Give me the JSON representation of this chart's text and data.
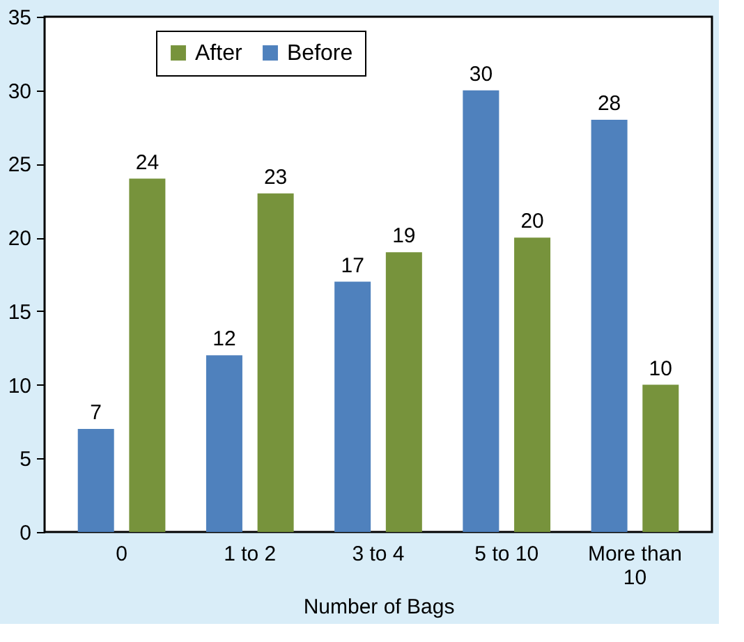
{
  "chart_data": {
    "type": "bar",
    "xlabel": "Number of Bags",
    "categories": [
      "0",
      "1 to 2",
      "3 to 4",
      "5 to 10",
      "More than 10"
    ],
    "series": [
      {
        "name": "Before",
        "color": "#4f81bd",
        "values": [
          7,
          12,
          17,
          30,
          28
        ]
      },
      {
        "name": "After",
        "color": "#77933c",
        "values": [
          24,
          23,
          19,
          20,
          10
        ]
      }
    ],
    "ylim": [
      0,
      35
    ],
    "yticks": [
      0,
      5,
      10,
      15,
      20,
      25,
      30,
      35
    ],
    "data_labels": true,
    "grid": false,
    "legend": "top left"
  }
}
